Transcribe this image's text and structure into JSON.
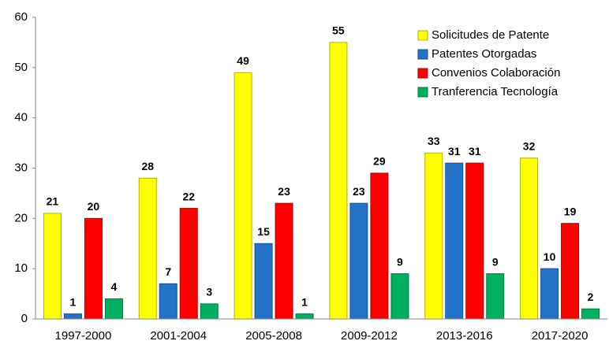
{
  "chart_data": {
    "type": "bar",
    "categories": [
      "1997-2000",
      "2001-2004",
      "2005-2008",
      "2009-2012",
      "2013-2016",
      "2017-2020"
    ],
    "series": [
      {
        "name": "Solicitudes de Patente",
        "color": "#ffff00",
        "values": [
          21,
          28,
          49,
          55,
          33,
          32
        ]
      },
      {
        "name": "Patentes Otorgadas",
        "color": "#2272c8",
        "values": [
          1,
          7,
          15,
          23,
          31,
          10
        ]
      },
      {
        "name": "Convenios Colaboración",
        "color": "#ff0000",
        "values": [
          20,
          22,
          23,
          29,
          31,
          19
        ]
      },
      {
        "name": "Tranferencia Tecnología",
        "color": "#00b060",
        "values": [
          4,
          3,
          1,
          9,
          9,
          2
        ]
      }
    ],
    "ylim": [
      0,
      60
    ],
    "yticks": [
      0,
      10,
      20,
      30,
      40,
      50,
      60
    ],
    "grid": false,
    "legend": "upper right",
    "data_labels": true
  }
}
